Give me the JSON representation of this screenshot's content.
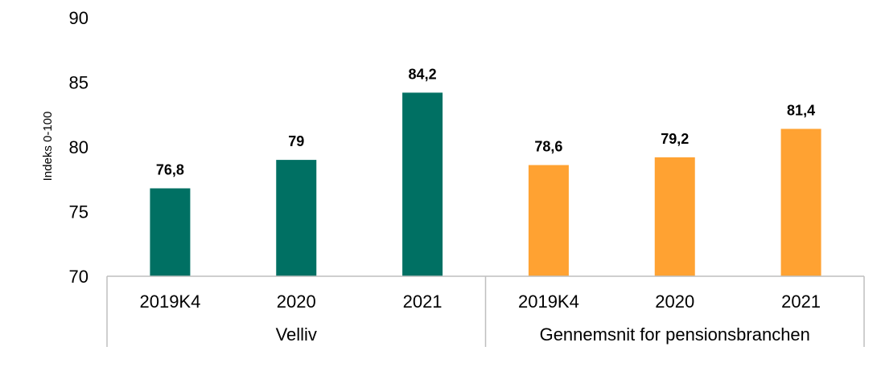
{
  "chart_data": {
    "type": "bar",
    "ylabel": "Indeks 0-100",
    "ylim": [
      70,
      90
    ],
    "yticks": [
      70,
      75,
      80,
      85,
      90
    ],
    "grid": false,
    "groups": [
      {
        "name": "Velliv",
        "color": "#007063",
        "categories": [
          "2019K4",
          "2020",
          "2021"
        ],
        "values": [
          76.8,
          79,
          84.2
        ],
        "labels": [
          "76,8",
          "79",
          "84,2"
        ]
      },
      {
        "name": "Gennemsnit for pensionsbranchen",
        "color": "#FFA232",
        "categories": [
          "2019K4",
          "2020",
          "2021"
        ],
        "values": [
          78.6,
          79.2,
          81.4
        ],
        "labels": [
          "78,6",
          "79,2",
          "81,4"
        ]
      }
    ]
  }
}
